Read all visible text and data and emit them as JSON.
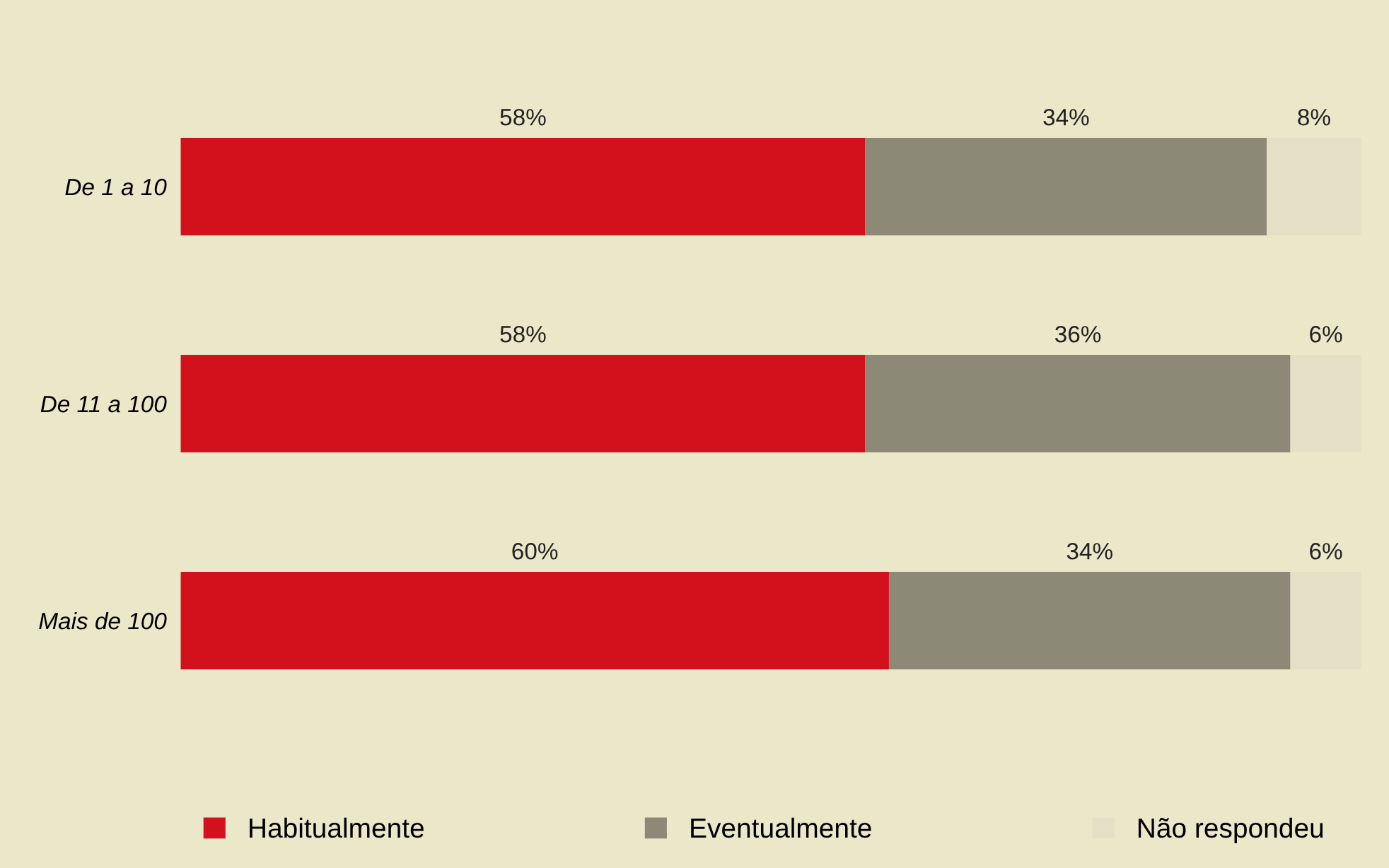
{
  "chart_data": {
    "type": "bar",
    "orientation": "horizontal",
    "stacked": true,
    "categories": [
      "De 1 a 10",
      "De 11 a 100",
      "Mais de 100"
    ],
    "series": [
      {
        "name": "Habitualmente",
        "color": "#d2111d",
        "values": [
          58,
          58,
          60
        ],
        "value_labels": [
          "58%",
          "58%",
          "60%"
        ]
      },
      {
        "name": "Eventualmente",
        "color": "#8c8a76",
        "values": [
          34,
          36,
          34
        ],
        "value_labels": [
          "34%",
          "36%",
          "34%"
        ]
      },
      {
        "name": "Não respondeu",
        "color": "#e4e0c6",
        "values": [
          8,
          6,
          6
        ],
        "value_labels": [
          "8%",
          "6%",
          "6%"
        ]
      }
    ],
    "xlim": [
      0,
      100
    ],
    "tick_labels": "y",
    "legend": "bottom",
    "grid": false
  }
}
